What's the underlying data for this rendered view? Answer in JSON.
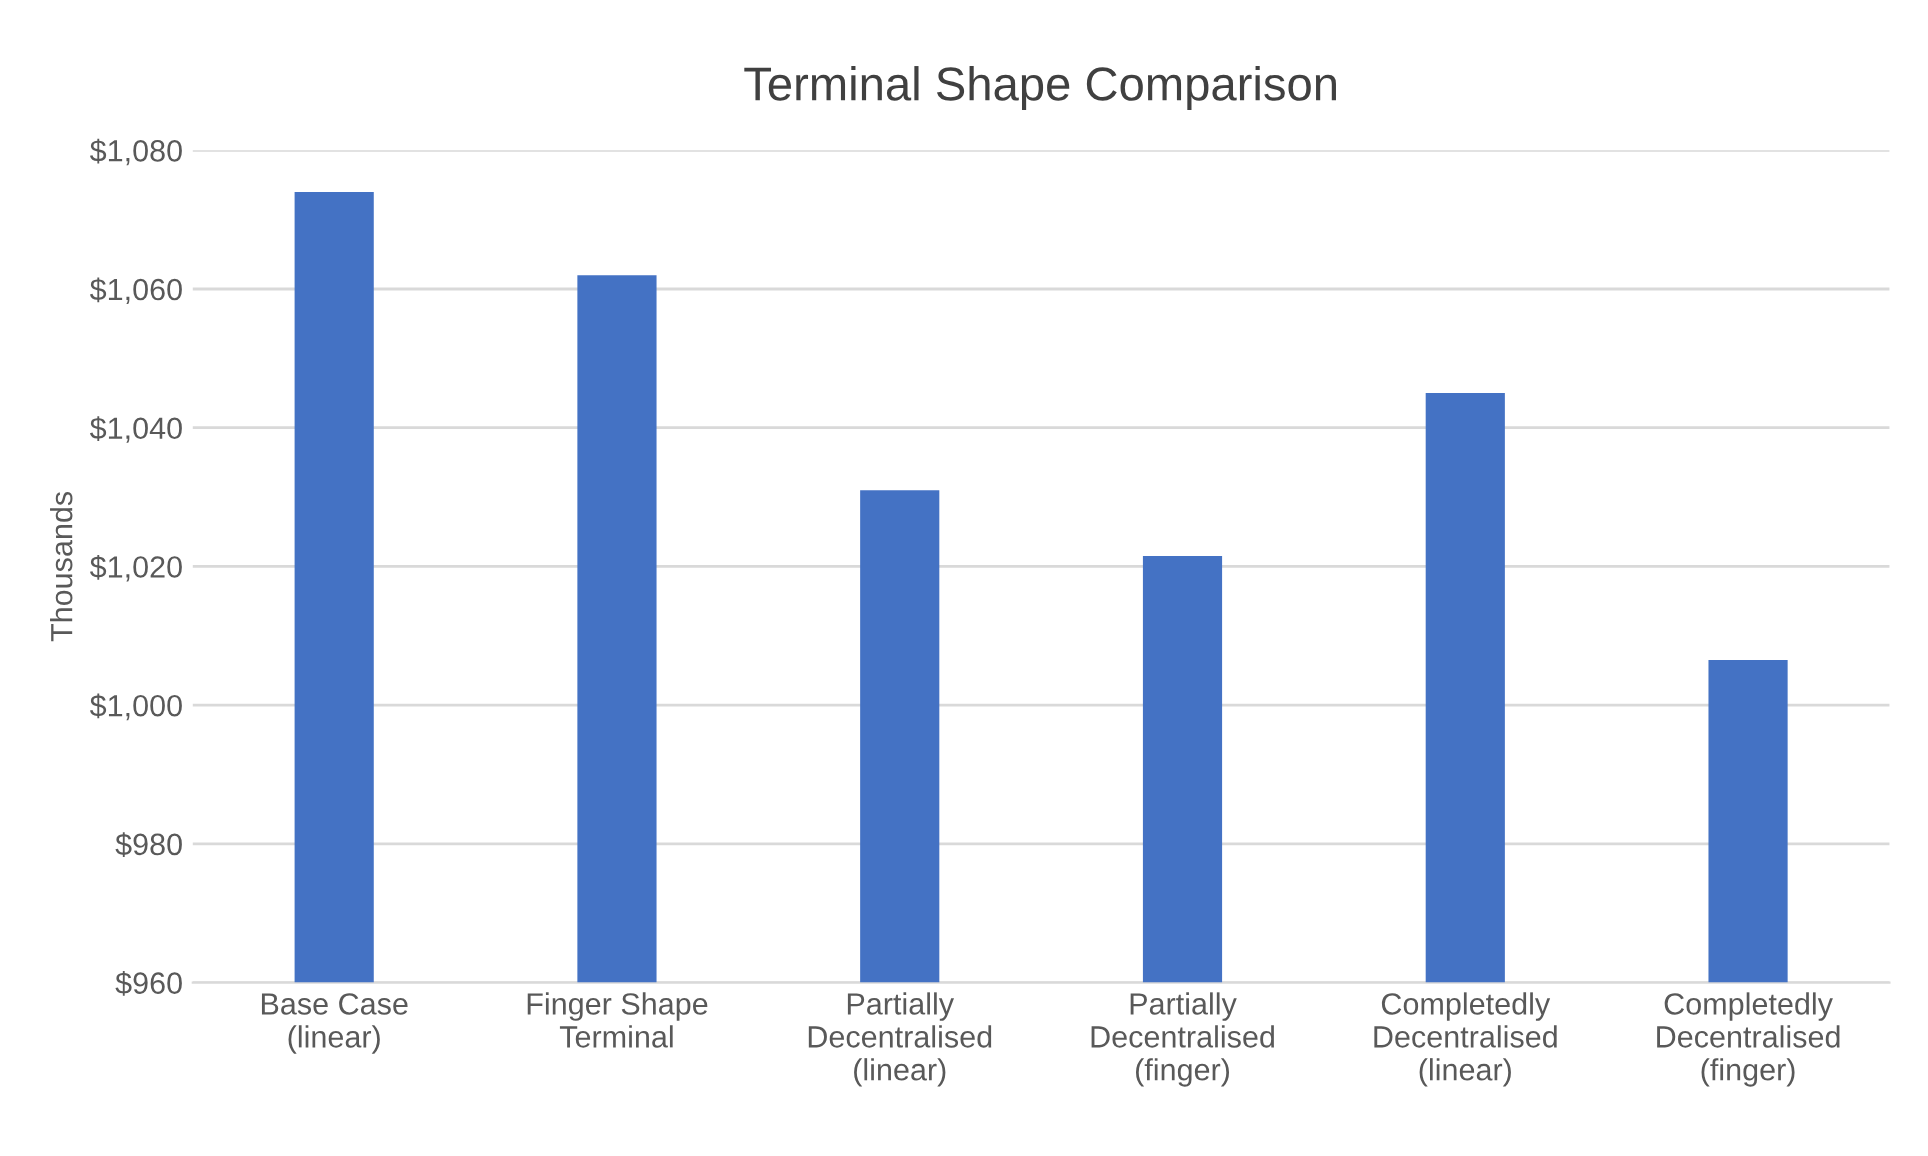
{
  "chart_data": {
    "type": "bar",
    "title": "Terminal Shape Comparison",
    "ylabel": "Thousands",
    "categories": [
      "Base Case\n(linear)",
      "Finger Shape\nTerminal",
      "Partially\nDecentralised\n(linear)",
      "Partially\nDecentralised\n(finger)",
      "Completedly\nDecentralised\n(linear)",
      "Completedly\nDecentralised\n(finger)"
    ],
    "values": [
      1074,
      1062,
      1031,
      1021.5,
      1045,
      1006.5
    ],
    "color": "#4472c4",
    "ylim": [
      960,
      1080
    ],
    "yticks": [
      {
        "value": 960,
        "label": "$960"
      },
      {
        "value": 980,
        "label": "$980"
      },
      {
        "value": 1000,
        "label": "$1,000"
      },
      {
        "value": 1020,
        "label": "$1,020"
      },
      {
        "value": 1040,
        "label": "$1,040"
      },
      {
        "value": 1060,
        "label": "$1,060"
      },
      {
        "value": 1080,
        "label": "$1,080"
      }
    ],
    "grid": "y",
    "legend": false
  }
}
